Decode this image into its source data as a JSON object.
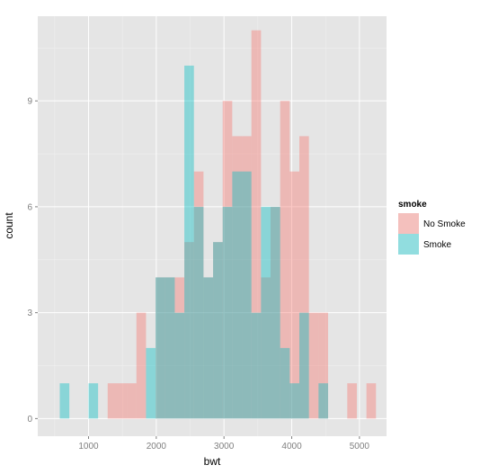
{
  "chart_data": {
    "type": "bar",
    "subtype": "overlapping-histogram",
    "title": "",
    "xlabel": "bwt",
    "ylabel": "count",
    "xlim": [
      250,
      5400
    ],
    "ylim": [
      -0.5,
      11.4
    ],
    "x_ticks": [
      1000,
      2000,
      3000,
      4000,
      5000
    ],
    "y_ticks": [
      0,
      3,
      6,
      9
    ],
    "grid": true,
    "legend_position": "right",
    "legend_title": "smoke",
    "bin_start": 575,
    "bin_width": 141.5,
    "series": [
      {
        "name": "No Smoke",
        "color": "#F8766D",
        "counts": [
          0,
          0,
          0,
          0,
          0,
          1,
          1,
          1,
          3,
          0,
          4,
          4,
          4,
          5,
          7,
          4,
          5,
          9,
          8,
          8,
          11,
          4,
          6,
          9,
          7,
          8,
          3,
          3,
          0,
          0,
          1,
          0,
          1
        ]
      },
      {
        "name": "Smoke",
        "color": "#00BFC4",
        "counts": [
          1,
          0,
          0,
          1,
          0,
          0,
          0,
          0,
          0,
          2,
          4,
          4,
          3,
          10,
          6,
          4,
          5,
          6,
          7,
          7,
          3,
          6,
          6,
          2,
          1,
          3,
          0,
          1,
          0,
          0,
          0,
          0,
          0
        ]
      }
    ]
  },
  "colors": {
    "panel_background": "#E5E5E5",
    "grid_major": "#FFFFFF",
    "grid_minor": "#F2F2F2"
  }
}
